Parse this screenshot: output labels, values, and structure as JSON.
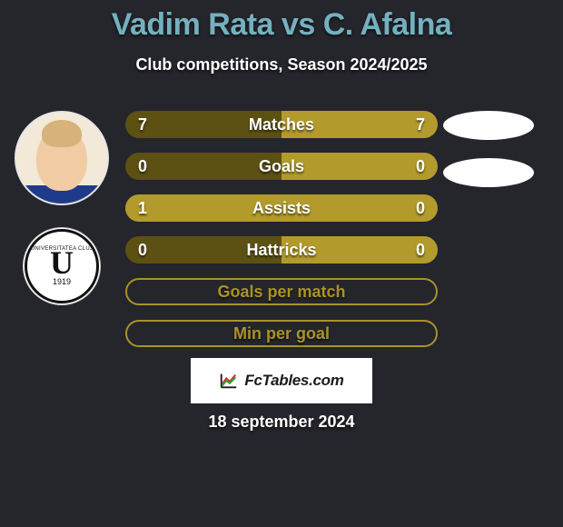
{
  "title": "Vadim Rata vs C. Afalna",
  "subtitle": "Club competitions, Season 2024/2025",
  "date": "18 september 2024",
  "left_player": {
    "avatar_name": "Vadim Rata portrait",
    "club_badge_top": "UNIVERSITATEA CLUJ",
    "club_badge_letter": "U",
    "club_badge_year": "1919"
  },
  "colors": {
    "title": "#73b1bf",
    "background": "#25252c",
    "bar_label_text": "#ffffff",
    "bar_value_text": "#ffffff",
    "bar_dark": "#5c5012",
    "bar_light": "#b29b2c",
    "bar_border": "#a99327",
    "badge_bg": "#ffffff",
    "oval_bg": "#ffffff"
  },
  "bars": [
    {
      "label": "Matches",
      "left_value": "7",
      "right_value": "7",
      "left_pct": 50,
      "right_pct": 50,
      "left_color": "#5c5012",
      "right_color": "#b29b2c",
      "border_color": "#a99327"
    },
    {
      "label": "Goals",
      "left_value": "0",
      "right_value": "0",
      "left_pct": 50,
      "right_pct": 50,
      "left_color": "#5c5012",
      "right_color": "#b29b2c",
      "border_color": "#a99327"
    },
    {
      "label": "Assists",
      "left_value": "1",
      "right_value": "0",
      "left_pct": 100,
      "right_pct": 0,
      "left_color": "#b29b2c",
      "right_color": "#5c5012",
      "border_color": "#a99327"
    },
    {
      "label": "Hattricks",
      "left_value": "0",
      "right_value": "0",
      "left_pct": 50,
      "right_pct": 50,
      "left_color": "#5c5012",
      "right_color": "#b29b2c",
      "border_color": "#a99327"
    },
    {
      "label": "Goals per match",
      "left_value": "",
      "right_value": "",
      "left_pct": 0,
      "right_pct": 0,
      "left_color": "#b29b2c",
      "right_color": "#b29b2c",
      "border_color": "#a99327",
      "hollow": true
    },
    {
      "label": "Min per goal",
      "left_value": "",
      "right_value": "",
      "left_pct": 0,
      "right_pct": 0,
      "left_color": "#b29b2c",
      "right_color": "#b29b2c",
      "border_color": "#a99327",
      "hollow": true
    }
  ],
  "footer": {
    "site_name": "FcTables.com"
  }
}
